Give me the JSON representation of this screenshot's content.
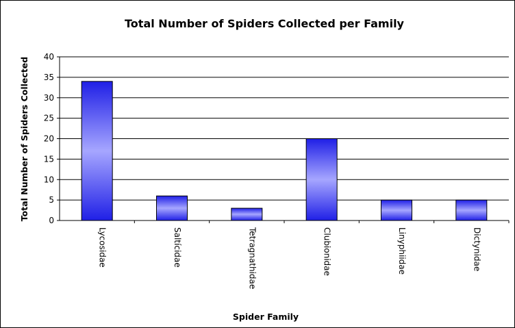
{
  "chart_data": {
    "type": "bar",
    "title": "Total Number of Spiders Collected per Family",
    "xlabel": "Spider Family",
    "ylabel": "Total Number of Spiders Collected",
    "categories": [
      "Lycosidae",
      "Saltícidae",
      "Tetragnathidae",
      "Clubionidae",
      "Linyphiidae",
      "Dictynidae"
    ],
    "values": [
      34,
      6,
      3,
      20,
      5,
      5
    ],
    "ylim": [
      0,
      40
    ],
    "yticks": [
      "0",
      "5",
      "10",
      "15",
      "20",
      "25",
      "30",
      "35",
      "40"
    ],
    "grid": true,
    "legend": "none",
    "colors": {
      "bar_edge": "#0000cc",
      "bar_dark": "#1f1fe6",
      "bar_light": "#a6a6ff",
      "grid": "#000000"
    }
  }
}
